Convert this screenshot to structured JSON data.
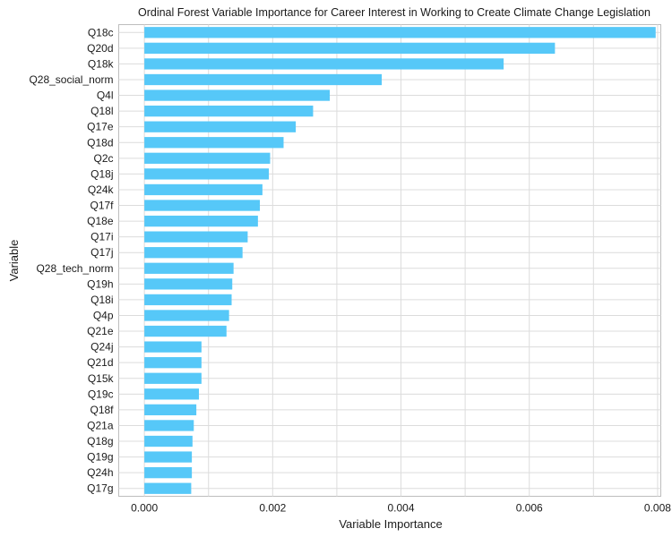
{
  "chart_data": {
    "type": "bar",
    "orientation": "horizontal",
    "title": "Ordinal Forest Variable Importance for Career Interest in Working to Create Climate Change Legislation",
    "xlabel": "Variable Importance",
    "ylabel": "Variable",
    "xlim": [
      -0.0004,
      0.00805
    ],
    "xticks": [
      0.0,
      0.002,
      0.004,
      0.006,
      0.008
    ],
    "xtick_labels": [
      "0.000",
      "0.002",
      "0.004",
      "0.006",
      "0.008"
    ],
    "grid": true,
    "bar_color": "#56C8F8",
    "categories": [
      "Q17g",
      "Q24h",
      "Q19g",
      "Q18g",
      "Q21a",
      "Q18f",
      "Q19c",
      "Q15k",
      "Q21d",
      "Q24j",
      "Q21e",
      "Q4p",
      "Q18i",
      "Q19h",
      "Q28_tech_norm",
      "Q17j",
      "Q17i",
      "Q18e",
      "Q17f",
      "Q24k",
      "Q18j",
      "Q2c",
      "Q18d",
      "Q17e",
      "Q18l",
      "Q4l",
      "Q28_social_norm",
      "Q18k",
      "Q20d",
      "Q18c"
    ],
    "values": [
      0.00073,
      0.00074,
      0.00074,
      0.00075,
      0.00077,
      0.00081,
      0.00085,
      0.00089,
      0.00089,
      0.00089,
      0.00128,
      0.00132,
      0.00136,
      0.00137,
      0.00139,
      0.00153,
      0.00161,
      0.00177,
      0.0018,
      0.00184,
      0.00194,
      0.00196,
      0.00217,
      0.00236,
      0.00263,
      0.00289,
      0.0037,
      0.0056,
      0.0064,
      0.00797
    ]
  }
}
